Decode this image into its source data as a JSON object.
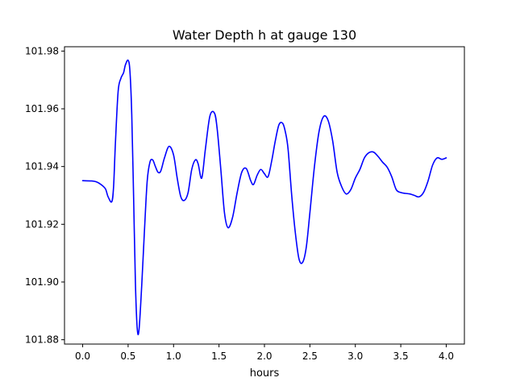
{
  "chart_data": {
    "type": "line",
    "title": "Water Depth h at gauge 130",
    "xlabel": "hours",
    "ylabel": "",
    "xlim": [
      -0.2,
      4.2
    ],
    "ylim": [
      101.8785,
      101.9815
    ],
    "xticks": [
      0.0,
      0.5,
      1.0,
      1.5,
      2.0,
      2.5,
      3.0,
      3.5,
      4.0
    ],
    "xtick_labels": [
      "0.0",
      "0.5",
      "1.0",
      "1.5",
      "2.0",
      "2.5",
      "3.0",
      "3.5",
      "4.0"
    ],
    "yticks": [
      101.88,
      101.9,
      101.92,
      101.94,
      101.96,
      101.98
    ],
    "ytick_labels": [
      "101.88",
      "101.90",
      "101.92",
      "101.94",
      "101.96",
      "101.98"
    ],
    "grid": false,
    "series": [
      {
        "color": "#0000ff",
        "x": [
          0.0,
          0.1,
          0.15,
          0.2,
          0.25,
          0.28,
          0.32,
          0.34,
          0.36,
          0.39,
          0.42,
          0.45,
          0.47,
          0.5,
          0.52,
          0.54,
          0.56,
          0.58,
          0.6,
          0.62,
          0.65,
          0.68,
          0.71,
          0.74,
          0.77,
          0.8,
          0.83,
          0.86,
          0.9,
          0.95,
          1.0,
          1.04,
          1.08,
          1.12,
          1.16,
          1.2,
          1.24,
          1.27,
          1.31,
          1.35,
          1.4,
          1.45,
          1.48,
          1.52,
          1.56,
          1.6,
          1.65,
          1.7,
          1.75,
          1.8,
          1.85,
          1.88,
          1.92,
          1.96,
          2.0,
          2.04,
          2.08,
          2.12,
          2.16,
          2.2,
          2.23,
          2.26,
          2.3,
          2.34,
          2.38,
          2.42,
          2.46,
          2.5,
          2.55,
          2.6,
          2.65,
          2.7,
          2.75,
          2.8,
          2.85,
          2.9,
          2.95,
          3.0,
          3.05,
          3.1,
          3.15,
          3.2,
          3.25,
          3.3,
          3.35,
          3.4,
          3.45,
          3.5,
          3.55,
          3.6,
          3.65,
          3.7,
          3.75,
          3.8,
          3.85,
          3.9,
          3.95,
          4.0
        ],
        "y": [
          101.9351,
          101.935,
          101.9347,
          101.9338,
          101.9323,
          101.9295,
          101.9278,
          101.933,
          101.948,
          101.966,
          101.9705,
          101.9725,
          101.9752,
          101.9768,
          101.973,
          101.958,
          101.93,
          101.9,
          101.884,
          101.8835,
          101.899,
          101.918,
          101.935,
          101.9415,
          101.9423,
          101.94,
          101.938,
          101.9385,
          101.943,
          101.947,
          101.944,
          101.936,
          101.9295,
          101.9283,
          101.931,
          101.939,
          101.9423,
          101.941,
          101.936,
          101.946,
          101.9575,
          101.9585,
          101.953,
          101.939,
          101.924,
          101.9188,
          101.9225,
          101.931,
          101.938,
          101.9393,
          101.935,
          101.9338,
          101.937,
          101.939,
          101.9375,
          101.9365,
          101.942,
          101.949,
          101.9545,
          101.955,
          101.952,
          101.946,
          101.93,
          101.917,
          101.908,
          101.9068,
          101.912,
          101.924,
          101.94,
          101.952,
          101.9573,
          101.956,
          101.949,
          101.938,
          101.933,
          101.9305,
          101.932,
          101.936,
          101.939,
          101.943,
          101.9448,
          101.945,
          101.9435,
          101.9415,
          101.9398,
          101.9365,
          101.932,
          101.931,
          101.9307,
          101.9305,
          101.93,
          101.9295,
          101.931,
          101.935,
          101.9405,
          101.943,
          101.9425,
          101.943
        ]
      }
    ]
  }
}
